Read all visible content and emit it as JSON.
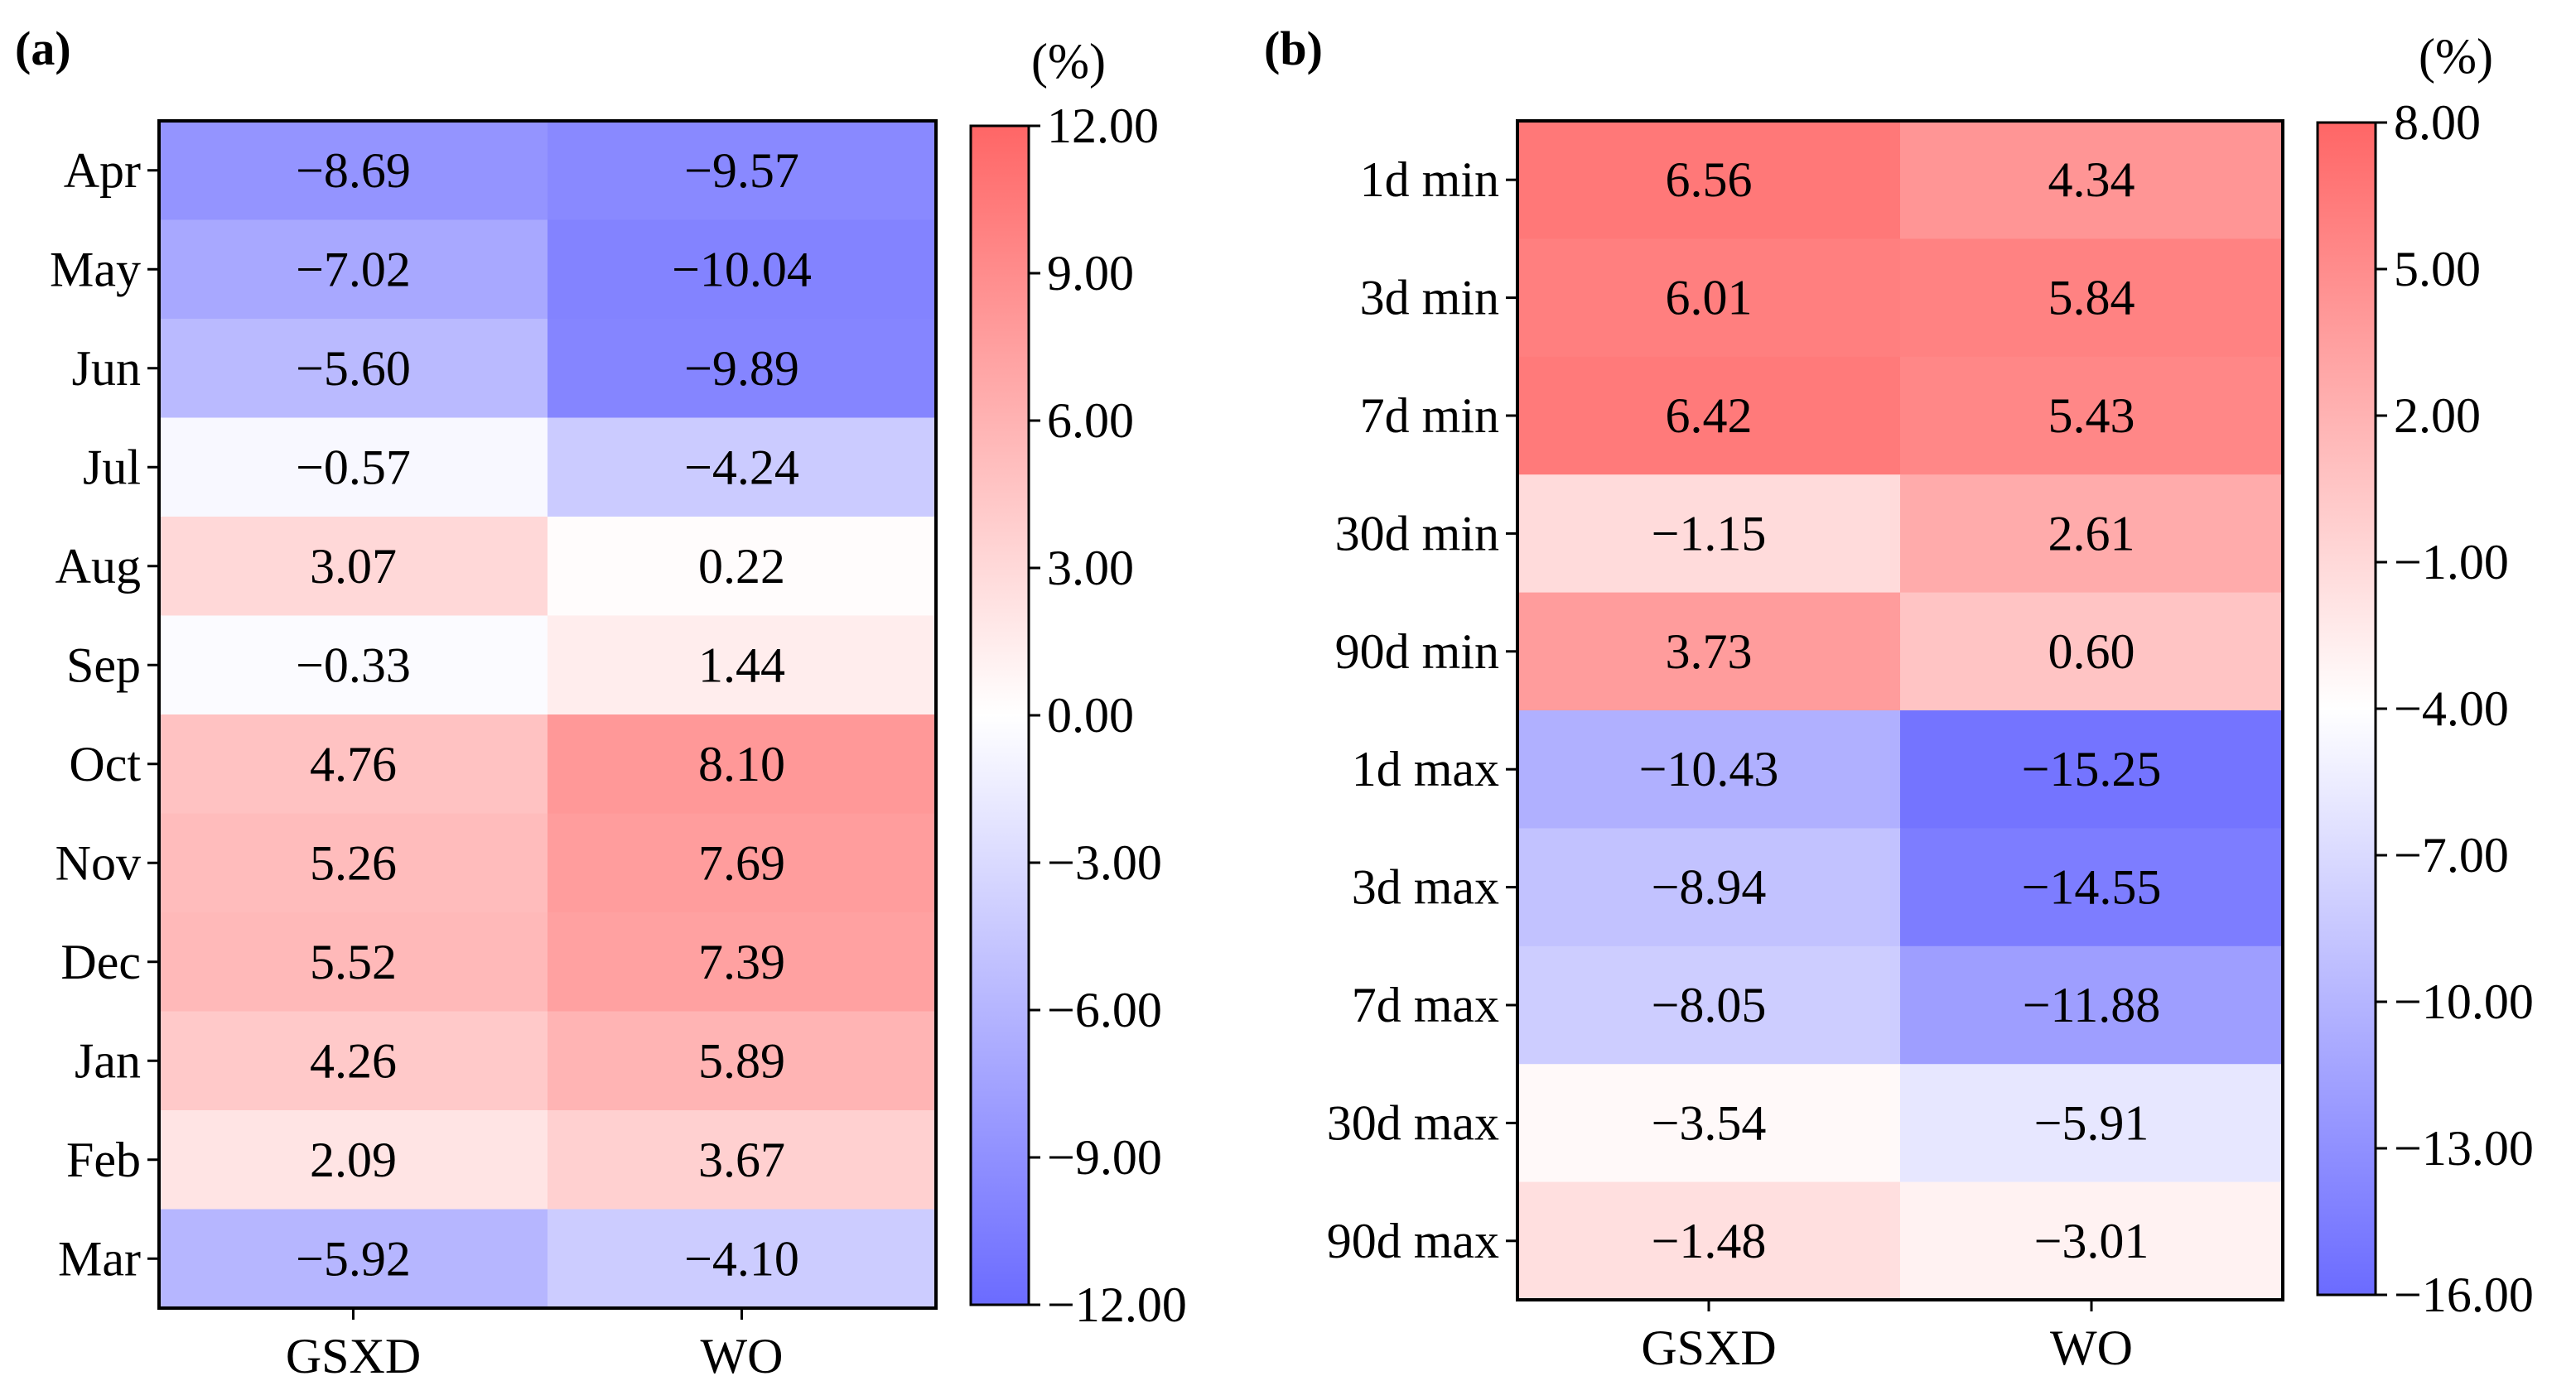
{
  "chart_data": [
    {
      "panel_label": "(a)",
      "type": "heatmap",
      "columns": [
        "GSXD",
        "WO"
      ],
      "rows": [
        "Apr",
        "May",
        "Jun",
        "Jul",
        "Aug",
        "Sep",
        "Oct",
        "Nov",
        "Dec",
        "Jan",
        "Feb",
        "Mar"
      ],
      "values": [
        [
          -8.69,
          -9.57
        ],
        [
          -7.02,
          -10.04
        ],
        [
          -5.6,
          -9.89
        ],
        [
          -0.57,
          -4.24
        ],
        [
          3.07,
          0.22
        ],
        [
          -0.33,
          1.44
        ],
        [
          4.76,
          8.1
        ],
        [
          5.26,
          7.69
        ],
        [
          5.52,
          7.39
        ],
        [
          4.26,
          5.89
        ],
        [
          2.09,
          3.67
        ],
        [
          -5.92,
          -4.1
        ]
      ],
      "value_labels": [
        [
          "−8.69",
          "−9.57"
        ],
        [
          "−7.02",
          "−10.04"
        ],
        [
          "−5.60",
          "−9.89"
        ],
        [
          "−0.57",
          "−4.24"
        ],
        [
          "3.07",
          "0.22"
        ],
        [
          "−0.33",
          "1.44"
        ],
        [
          "4.76",
          "8.10"
        ],
        [
          "5.26",
          "7.69"
        ],
        [
          "5.52",
          "7.39"
        ],
        [
          "4.26",
          "5.89"
        ],
        [
          "2.09",
          "3.67"
        ],
        [
          "−5.92",
          "−4.10"
        ]
      ],
      "colorbar": {
        "unit": "(%)",
        "range": [
          -12,
          12
        ],
        "ticks": [
          12,
          9,
          6,
          3,
          0,
          -3,
          -6,
          -9,
          -12
        ],
        "tick_labels": [
          "12.00",
          "9.00",
          "6.00",
          "3.00",
          "0.00",
          "−3.00",
          "−6.00",
          "−9.00",
          "−12.00"
        ]
      },
      "colors": {
        "low": "#6b6bff",
        "mid": "#ffffff",
        "high": "#ff6666"
      }
    },
    {
      "panel_label": "(b)",
      "type": "heatmap",
      "columns": [
        "GSXD",
        "WO"
      ],
      "rows": [
        "1d min",
        "3d min",
        "7d min",
        "30d min",
        "90d min",
        "1d max",
        "3d max",
        "7d max",
        "30d max",
        "90d max"
      ],
      "values": [
        [
          6.56,
          4.34
        ],
        [
          6.01,
          5.84
        ],
        [
          6.42,
          5.43
        ],
        [
          -1.15,
          2.61
        ],
        [
          3.73,
          0.6
        ],
        [
          -10.43,
          -15.25
        ],
        [
          -8.94,
          -14.55
        ],
        [
          -8.05,
          -11.88
        ],
        [
          -3.54,
          -5.91
        ],
        [
          -1.48,
          -3.01
        ]
      ],
      "value_labels": [
        [
          "6.56",
          "4.34"
        ],
        [
          "6.01",
          "5.84"
        ],
        [
          "6.42",
          "5.43"
        ],
        [
          "−1.15",
          "2.61"
        ],
        [
          "3.73",
          "0.60"
        ],
        [
          "−10.43",
          "−15.25"
        ],
        [
          "−8.94",
          "−14.55"
        ],
        [
          "−8.05",
          "−11.88"
        ],
        [
          "−3.54",
          "−5.91"
        ],
        [
          "−1.48",
          "−3.01"
        ]
      ],
      "colorbar": {
        "unit": "(%)",
        "range": [
          -16,
          8
        ],
        "ticks": [
          8,
          5,
          2,
          -1,
          -4,
          -7,
          -10,
          -13,
          -16
        ],
        "tick_labels": [
          "8.00",
          "5.00",
          "2.00",
          "−1.00",
          "−4.00",
          "−7.00",
          "−10.00",
          "−13.00",
          "−16.00"
        ]
      },
      "colors": {
        "low": "#6b6bff",
        "mid": "#ffffff",
        "high": "#ff6666"
      }
    }
  ]
}
